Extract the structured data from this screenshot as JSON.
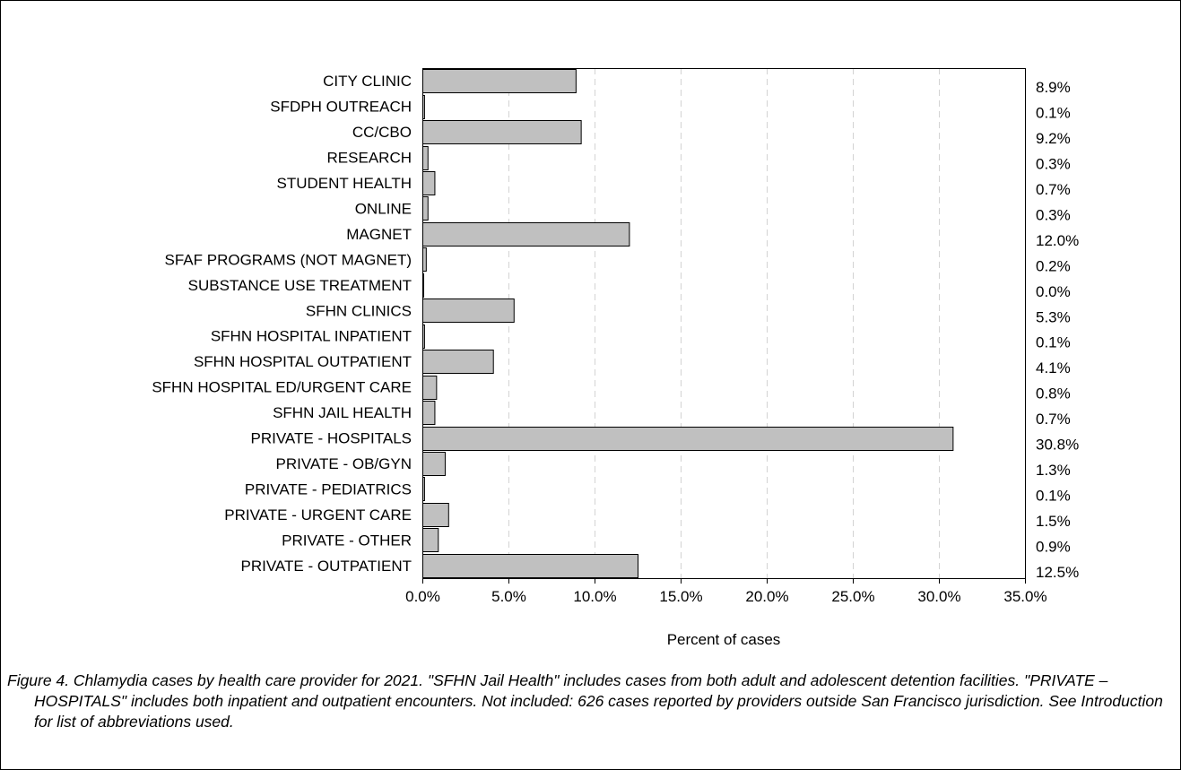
{
  "chart_data": {
    "type": "bar",
    "orientation": "horizontal",
    "categories": [
      "CITY CLINIC",
      "SFDPH OUTREACH",
      "CC/CBO",
      "RESEARCH",
      "STUDENT HEALTH",
      "ONLINE",
      "MAGNET",
      "SFAF PROGRAMS (NOT MAGNET)",
      "SUBSTANCE USE TREATMENT",
      "SFHN CLINICS",
      "SFHN HOSPITAL INPATIENT",
      "SFHN HOSPITAL OUTPATIENT",
      "SFHN HOSPITAL ED/URGENT CARE",
      "SFHN JAIL HEALTH",
      "PRIVATE - HOSPITALS",
      "PRIVATE - OB/GYN",
      "PRIVATE - PEDIATRICS",
      "PRIVATE - URGENT CARE",
      "PRIVATE - OTHER",
      "PRIVATE - OUTPATIENT"
    ],
    "values": [
      8.9,
      0.1,
      9.2,
      0.3,
      0.7,
      0.3,
      12.0,
      0.2,
      0.0,
      5.3,
      0.1,
      4.1,
      0.8,
      0.7,
      30.8,
      1.3,
      0.1,
      1.5,
      0.9,
      12.5
    ],
    "value_labels": [
      "8.9%",
      "0.1%",
      "9.2%",
      "0.3%",
      "0.7%",
      "0.3%",
      "12.0%",
      "0.2%",
      "0.0%",
      "5.3%",
      "0.1%",
      "4.1%",
      "0.8%",
      "0.7%",
      "30.8%",
      "1.3%",
      "0.1%",
      "1.5%",
      "0.9%",
      "12.5%"
    ],
    "xticks": [
      0,
      5,
      10,
      15,
      20,
      25,
      30,
      35
    ],
    "xtick_labels": [
      "0.0%",
      "5.0%",
      "10.0%",
      "15.0%",
      "20.0%",
      "25.0%",
      "30.0%",
      "35.0%"
    ],
    "xlim": [
      0,
      35
    ],
    "xlabel": "Percent of cases",
    "ylabel": "",
    "title": "",
    "grid": "vertical dashed",
    "bar_color": "#c0c0c0",
    "bar_edge_color": "#000000",
    "grid_color": "#d3d3d3"
  },
  "caption": "Figure 4.  Chlamydia cases by health care provider for 2021.  \"SFHN Jail Health\" includes cases from both adult and adolescent detention facilities.  \"PRIVATE – HOSPITALS\" includes both inpatient and outpatient encounters. Not included: 626 cases reported by providers outside San Francisco jurisdiction. See Introduction for list of abbreviations used."
}
